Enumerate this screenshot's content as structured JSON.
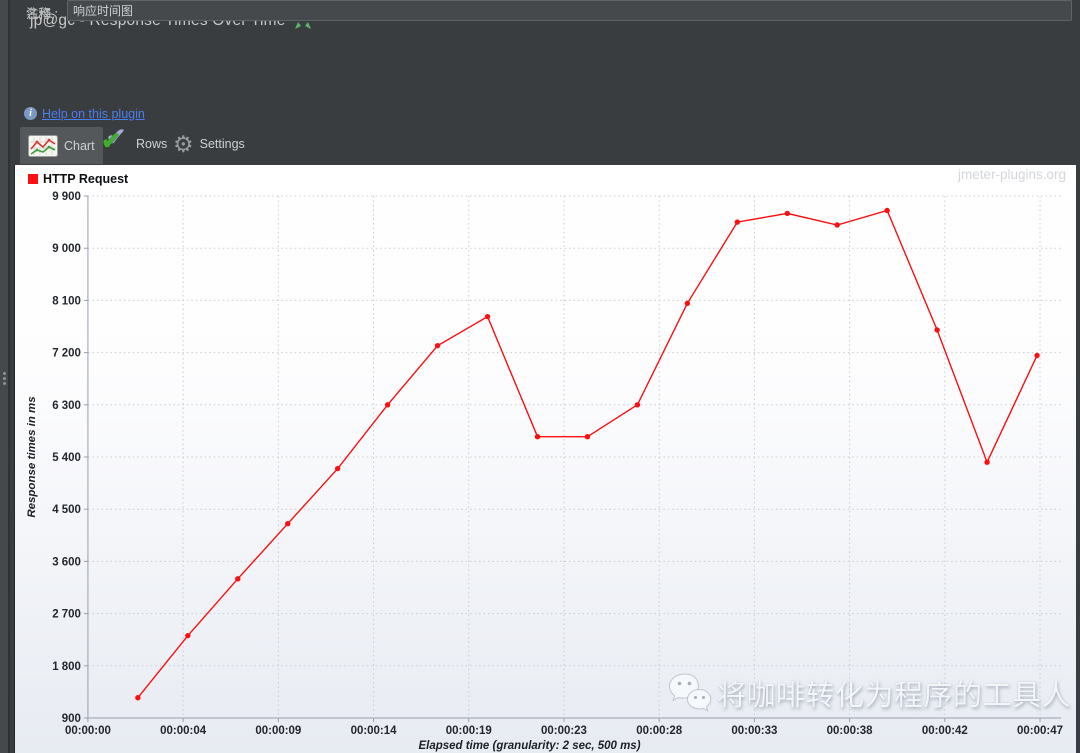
{
  "window": {
    "title": "jp@gc - Response Times Over Time",
    "collapse_icon": "collapse-arrows-icon"
  },
  "form": {
    "name_label": "名称 :",
    "name_value": "jp@gc - Response Times Over Time",
    "comment_label": "注释 :",
    "comment_value": "响应时间图"
  },
  "help": {
    "icon": "info-icon",
    "label": "Help on this plugin"
  },
  "tabs": [
    {
      "id": "chart",
      "label": "Chart",
      "icon": "chart-icon",
      "selected": true
    },
    {
      "id": "rows",
      "label": "Rows",
      "icon": "checkmark-icon",
      "selected": false
    },
    {
      "id": "settings",
      "label": "Settings",
      "icon": "gear-icon",
      "selected": false
    }
  ],
  "watermarks": {
    "top_right": "jmeter-plugins.org",
    "bottom_text": "将咖啡转化为程序的工具人",
    "bottom_icon": "wechat-icon"
  },
  "colors": {
    "panel_background": "#3a3d3f",
    "series_red": "#fa0f12",
    "link_blue": "#4a7df0",
    "tab_selected": "#54585b",
    "grid_dotted": "#c7cbd4",
    "axis_line": "#98a0ac"
  },
  "chart_data": {
    "type": "line",
    "title": "",
    "legend_position": "top-left",
    "grid": "dotted",
    "legend": [
      {
        "name": "HTTP Request",
        "color": "#fa0f12"
      }
    ],
    "ylabel": "Response times in ms",
    "xlabel": "Elapsed time (granularity: 2 sec, 500 ms)",
    "ylim": [
      900,
      9900
    ],
    "y_tick_labels": [
      "900",
      "1 800",
      "2 700",
      "3 600",
      "4 500",
      "5 400",
      "6 300",
      "7 200",
      "8 100",
      "9 000",
      "9 900"
    ],
    "x_tick_labels": [
      "00:00:00",
      "00:00:04",
      "00:00:09",
      "00:00:14",
      "00:00:19",
      "00:00:23",
      "00:00:28",
      "00:00:33",
      "00:00:38",
      "00:00:42",
      "00:00:47"
    ],
    "series": [
      {
        "name": "HTTP Request",
        "color": "#fa0f12",
        "x_seconds": [
          2.5,
          5,
          7.5,
          10,
          12.5,
          15,
          17.5,
          20,
          22.5,
          25,
          27.5,
          30,
          32.5,
          35,
          37.5,
          40,
          42.5,
          45,
          47.5
        ],
        "values_ms": [
          1250,
          2320,
          3300,
          4250,
          5200,
          6300,
          7320,
          7820,
          5750,
          5750,
          6300,
          8050,
          9450,
          9600,
          9400,
          9650,
          7590,
          5310,
          7150
        ]
      }
    ]
  }
}
